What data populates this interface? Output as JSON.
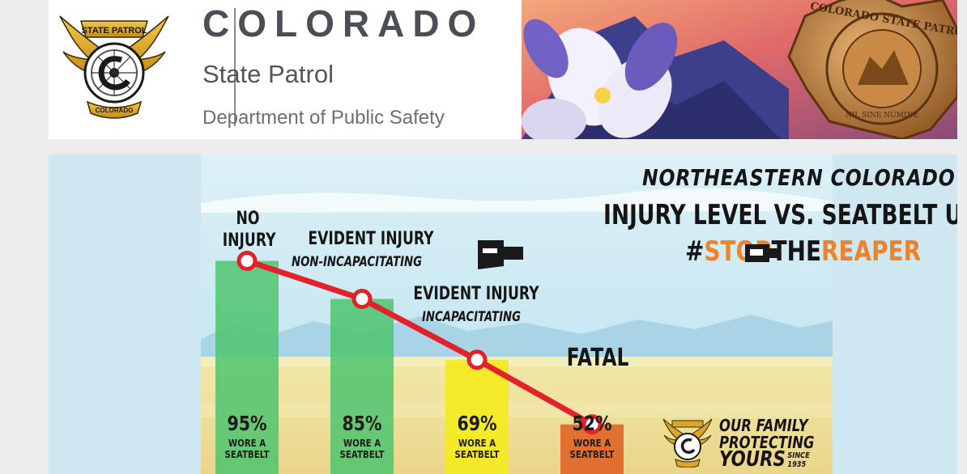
{
  "header": {
    "emblem_text_top": "STATE PATROL",
    "emblem_text_bottom": "COLORADO",
    "org_name": "COLORADO",
    "agency_name": "State Patrol",
    "department": "Department of Public Safety",
    "badge_text": "COLORADO STATE PATROL",
    "badge_motto": "NIL SINE NUMINE"
  },
  "infographic": {
    "title_line1": "NORTHEASTERN COLORADO",
    "title_line2": "INJURY LEVEL VS. SEATBELT USE",
    "hashtag_hash": "#",
    "hashtag_stop": "STOP",
    "hashtag_the": "THE",
    "hashtag_reaper": "REAPER",
    "slogan_line1": "OUR FAMILY",
    "slogan_line2": "PROTECTING",
    "slogan_line3": "YOURS",
    "slogan_since": "SINCE",
    "slogan_year": "1935"
  },
  "chart_data": {
    "type": "bar",
    "categories": [
      {
        "line1": "NO",
        "line2": "INJURY",
        "sub": ""
      },
      {
        "line1": "EVIDENT INJURY",
        "line2": "",
        "sub": "NON-INCAPACITATING"
      },
      {
        "line1": "EVIDENT INJURY",
        "line2": "",
        "sub": "INCAPACITATING"
      },
      {
        "line1": "FATAL",
        "line2": "",
        "sub": ""
      }
    ],
    "values": [
      95,
      85,
      69,
      52
    ],
    "value_labels": [
      "95%",
      "85%",
      "69%",
      "52%"
    ],
    "bar_caption": "WORE A SEATBELT",
    "caption_line1": "WORE A",
    "caption_line2": "SEATBELT",
    "bar_colors": [
      "#4fc46f",
      "#4fc46f",
      "#f3ea24",
      "#e06a2b"
    ],
    "line_color": "#e3212b",
    "ylim": [
      0,
      100
    ],
    "grid": false
  }
}
